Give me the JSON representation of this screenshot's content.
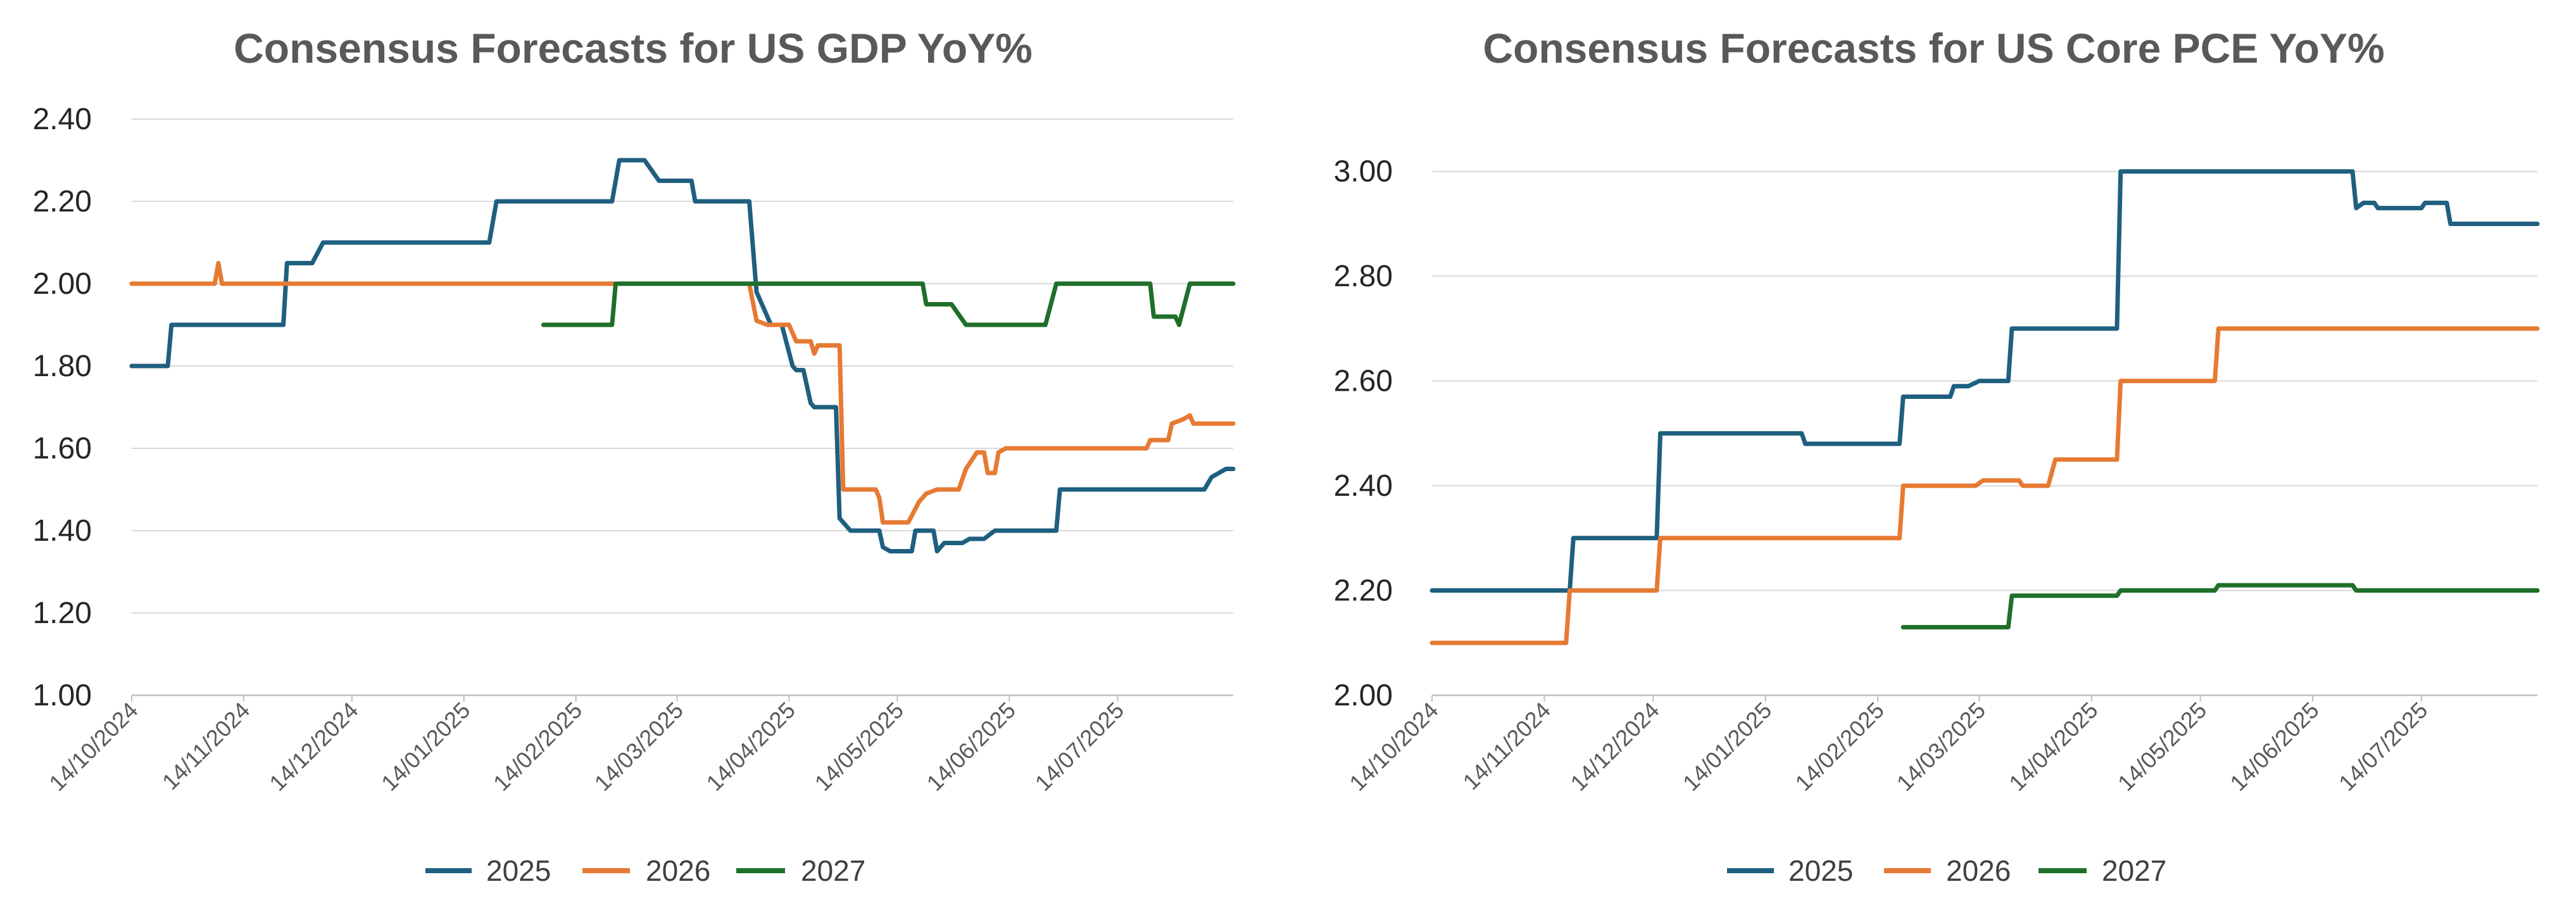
{
  "chart_data": [
    {
      "type": "line",
      "title": "Consensus Forecasts for US GDP YoY%",
      "xlabel": "",
      "ylabel": "",
      "ylim": [
        1.0,
        2.4
      ],
      "yticks": [
        "1.00",
        "1.20",
        "1.40",
        "1.60",
        "1.80",
        "2.00",
        "2.20",
        "2.40"
      ],
      "xticks": [
        "14/10/2024",
        "14/11/2024",
        "14/12/2024",
        "14/01/2025",
        "14/02/2025",
        "14/03/2025",
        "14/04/2025",
        "14/05/2025",
        "14/06/2025",
        "14/07/2025"
      ],
      "x_start": "2024-10-14",
      "x_end": "2025-08-15",
      "grid": true,
      "legend_position": "bottom",
      "series": [
        {
          "name": "2025",
          "color": "#1f5f7f",
          "points": [
            [
              "2024-10-14",
              1.8
            ],
            [
              "2024-10-24",
              1.8
            ],
            [
              "2024-10-25",
              1.9
            ],
            [
              "2024-11-25",
              1.9
            ],
            [
              "2024-11-26",
              2.05
            ],
            [
              "2024-12-03",
              2.05
            ],
            [
              "2024-12-06",
              2.1
            ],
            [
              "2025-01-21",
              2.1
            ],
            [
              "2025-01-23",
              2.2
            ],
            [
              "2025-02-24",
              2.2
            ],
            [
              "2025-02-26",
              2.3
            ],
            [
              "2025-03-05",
              2.3
            ],
            [
              "2025-03-09",
              2.25
            ],
            [
              "2025-03-18",
              2.25
            ],
            [
              "2025-03-19",
              2.2
            ],
            [
              "2025-04-03",
              2.2
            ],
            [
              "2025-04-05",
              1.98
            ],
            [
              "2025-04-08",
              1.92
            ],
            [
              "2025-04-09",
              1.9
            ],
            [
              "2025-04-12",
              1.9
            ],
            [
              "2025-04-15",
              1.8
            ],
            [
              "2025-04-16",
              1.79
            ],
            [
              "2025-04-18",
              1.79
            ],
            [
              "2025-04-20",
              1.71
            ],
            [
              "2025-04-21",
              1.7
            ],
            [
              "2025-04-27",
              1.7
            ],
            [
              "2025-04-28",
              1.43
            ],
            [
              "2025-05-01",
              1.4
            ],
            [
              "2025-05-09",
              1.4
            ],
            [
              "2025-05-10",
              1.36
            ],
            [
              "2025-05-12",
              1.35
            ],
            [
              "2025-05-18",
              1.35
            ],
            [
              "2025-05-19",
              1.4
            ],
            [
              "2025-05-24",
              1.4
            ],
            [
              "2025-05-25",
              1.35
            ],
            [
              "2025-05-27",
              1.37
            ],
            [
              "2025-06-01",
              1.37
            ],
            [
              "2025-06-03",
              1.38
            ],
            [
              "2025-06-07",
              1.38
            ],
            [
              "2025-06-10",
              1.4
            ],
            [
              "2025-06-27",
              1.4
            ],
            [
              "2025-06-28",
              1.5
            ],
            [
              "2025-08-07",
              1.5
            ],
            [
              "2025-08-09",
              1.53
            ],
            [
              "2025-08-13",
              1.55
            ],
            [
              "2025-08-15",
              1.55
            ]
          ]
        },
        {
          "name": "2026",
          "color": "#e67a33",
          "points": [
            [
              "2024-10-14",
              2.0
            ],
            [
              "2024-11-06",
              2.0
            ],
            [
              "2024-11-07",
              2.05
            ],
            [
              "2024-11-08",
              2.0
            ],
            [
              "2025-04-03",
              2.0
            ],
            [
              "2025-04-05",
              1.91
            ],
            [
              "2025-04-08",
              1.9
            ],
            [
              "2025-04-14",
              1.9
            ],
            [
              "2025-04-16",
              1.86
            ],
            [
              "2025-04-20",
              1.86
            ],
            [
              "2025-04-21",
              1.83
            ],
            [
              "2025-04-22",
              1.85
            ],
            [
              "2025-04-28",
              1.85
            ],
            [
              "2025-04-29",
              1.5
            ],
            [
              "2025-05-08",
              1.5
            ],
            [
              "2025-05-09",
              1.48
            ],
            [
              "2025-05-10",
              1.42
            ],
            [
              "2025-05-17",
              1.42
            ],
            [
              "2025-05-20",
              1.47
            ],
            [
              "2025-05-22",
              1.49
            ],
            [
              "2025-05-25",
              1.5
            ],
            [
              "2025-05-31",
              1.5
            ],
            [
              "2025-06-02",
              1.55
            ],
            [
              "2025-06-05",
              1.59
            ],
            [
              "2025-06-07",
              1.59
            ],
            [
              "2025-06-08",
              1.54
            ],
            [
              "2025-06-10",
              1.54
            ],
            [
              "2025-06-11",
              1.59
            ],
            [
              "2025-06-13",
              1.6
            ],
            [
              "2025-07-22",
              1.6
            ],
            [
              "2025-07-23",
              1.62
            ],
            [
              "2025-07-28",
              1.62
            ],
            [
              "2025-07-29",
              1.66
            ],
            [
              "2025-08-01",
              1.67
            ],
            [
              "2025-08-03",
              1.68
            ],
            [
              "2025-08-04",
              1.66
            ],
            [
              "2025-08-15",
              1.66
            ]
          ]
        },
        {
          "name": "2027",
          "color": "#1f6f2a",
          "points": [
            [
              "2025-02-05",
              1.9
            ],
            [
              "2025-02-24",
              1.9
            ],
            [
              "2025-02-25",
              2.0
            ],
            [
              "2025-05-21",
              2.0
            ],
            [
              "2025-05-22",
              1.95
            ],
            [
              "2025-05-29",
              1.95
            ],
            [
              "2025-06-02",
              1.9
            ],
            [
              "2025-06-24",
              1.9
            ],
            [
              "2025-06-27",
              2.0
            ],
            [
              "2025-07-23",
              2.0
            ],
            [
              "2025-07-24",
              1.92
            ],
            [
              "2025-07-30",
              1.92
            ],
            [
              "2025-07-31",
              1.9
            ],
            [
              "2025-08-03",
              2.0
            ],
            [
              "2025-08-15",
              2.0
            ]
          ]
        }
      ]
    },
    {
      "type": "line",
      "title": "Consensus Forecasts for US Core PCE YoY%",
      "xlabel": "",
      "ylabel": "",
      "ylim": [
        2.0,
        3.1
      ],
      "yticks": [
        "2.00",
        "2.20",
        "2.40",
        "2.60",
        "2.80",
        "3.00"
      ],
      "xticks": [
        "14/10/2024",
        "14/11/2024",
        "14/12/2024",
        "14/01/2025",
        "14/02/2025",
        "14/03/2025",
        "14/04/2025",
        "14/05/2025",
        "14/06/2025",
        "14/07/2025"
      ],
      "x_start": "2024-10-14",
      "x_end": "2025-08-15",
      "grid": true,
      "legend_position": "bottom",
      "series": [
        {
          "name": "2025",
          "color": "#1f5f7f",
          "points": [
            [
              "2024-10-14",
              2.2
            ],
            [
              "2024-11-21",
              2.2
            ],
            [
              "2024-11-22",
              2.3
            ],
            [
              "2024-12-15",
              2.3
            ],
            [
              "2024-12-16",
              2.5
            ],
            [
              "2025-01-24",
              2.5
            ],
            [
              "2025-01-25",
              2.48
            ],
            [
              "2025-02-20",
              2.48
            ],
            [
              "2025-02-21",
              2.57
            ],
            [
              "2025-03-06",
              2.57
            ],
            [
              "2025-03-07",
              2.59
            ],
            [
              "2025-03-11",
              2.59
            ],
            [
              "2025-03-14",
              2.6
            ],
            [
              "2025-03-22",
              2.6
            ],
            [
              "2025-03-23",
              2.7
            ],
            [
              "2025-04-21",
              2.7
            ],
            [
              "2025-04-22",
              3.0
            ],
            [
              "2025-06-25",
              3.0
            ],
            [
              "2025-06-26",
              2.93
            ],
            [
              "2025-06-28",
              2.94
            ],
            [
              "2025-07-01",
              2.94
            ],
            [
              "2025-07-02",
              2.93
            ],
            [
              "2025-07-14",
              2.93
            ],
            [
              "2025-07-15",
              2.94
            ],
            [
              "2025-07-21",
              2.94
            ],
            [
              "2025-07-22",
              2.9
            ],
            [
              "2025-08-15",
              2.9
            ]
          ]
        },
        {
          "name": "2026",
          "color": "#e67a33",
          "points": [
            [
              "2024-10-14",
              2.1
            ],
            [
              "2024-11-20",
              2.1
            ],
            [
              "2024-11-21",
              2.2
            ],
            [
              "2024-12-15",
              2.2
            ],
            [
              "2024-12-16",
              2.3
            ],
            [
              "2025-02-20",
              2.3
            ],
            [
              "2025-02-21",
              2.4
            ],
            [
              "2025-03-13",
              2.4
            ],
            [
              "2025-03-15",
              2.41
            ],
            [
              "2025-03-25",
              2.41
            ],
            [
              "2025-03-26",
              2.4
            ],
            [
              "2025-04-02",
              2.4
            ],
            [
              "2025-04-04",
              2.45
            ],
            [
              "2025-04-21",
              2.45
            ],
            [
              "2025-04-22",
              2.6
            ],
            [
              "2025-05-18",
              2.6
            ],
            [
              "2025-05-19",
              2.7
            ],
            [
              "2025-08-15",
              2.7
            ]
          ]
        },
        {
          "name": "2027",
          "color": "#1f6f2a",
          "points": [
            [
              "2025-02-21",
              2.13
            ],
            [
              "2025-03-22",
              2.13
            ],
            [
              "2025-03-23",
              2.19
            ],
            [
              "2025-04-21",
              2.19
            ],
            [
              "2025-04-22",
              2.2
            ],
            [
              "2025-05-18",
              2.2
            ],
            [
              "2025-05-19",
              2.21
            ],
            [
              "2025-06-25",
              2.21
            ],
            [
              "2025-06-26",
              2.2
            ],
            [
              "2025-08-15",
              2.2
            ]
          ]
        }
      ]
    }
  ]
}
